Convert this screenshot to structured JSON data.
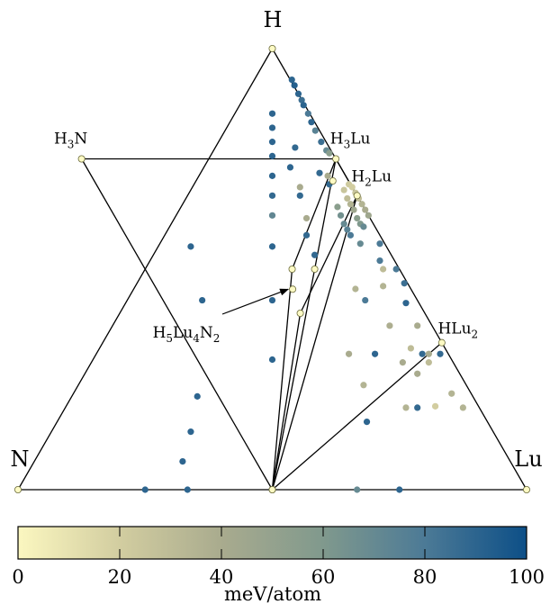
{
  "chart_data": {
    "type": "scatter",
    "subtype": "ternary phase diagram",
    "corners": {
      "top": "H",
      "left": "N",
      "right": "Lu"
    },
    "phase_labels": [
      {
        "id": "h3n",
        "parts": [
          [
            "H",
            ""
          ],
          [
            "3",
            "sub"
          ],
          [
            "N",
            ""
          ]
        ],
        "x": 0.125,
        "y": 0.75
      },
      {
        "id": "h3lu",
        "parts": [
          [
            "H",
            ""
          ],
          [
            "3",
            "sub"
          ],
          [
            "Lu",
            ""
          ]
        ],
        "x": 0.625,
        "y": 0.75
      },
      {
        "id": "h2lu",
        "parts": [
          [
            "H",
            ""
          ],
          [
            "2",
            "sub"
          ],
          [
            "Lu",
            ""
          ]
        ],
        "x": 0.6667,
        "y": 0.6667
      },
      {
        "id": "hlu2",
        "parts": [
          [
            "H",
            ""
          ],
          [
            "Lu",
            ""
          ],
          [
            "2",
            "sub"
          ]
        ],
        "x": 0.8333,
        "y": 0.3333
      },
      {
        "id": "h5lu4n2",
        "parts": [
          [
            "H",
            ""
          ],
          [
            "5",
            "sub"
          ],
          [
            "Lu",
            ""
          ],
          [
            "4",
            "sub"
          ],
          [
            "N",
            ""
          ],
          [
            "2",
            "sub"
          ]
        ],
        "x": 0.54,
        "y": 0.4545
      }
    ],
    "stable_points": [
      {
        "x": 0.5,
        "y": 1.0
      },
      {
        "x": 0.0,
        "y": 0.0
      },
      {
        "x": 1.0,
        "y": 0.0
      },
      {
        "x": 0.5,
        "y": 0.0
      },
      {
        "x": 0.125,
        "y": 0.75
      },
      {
        "x": 0.625,
        "y": 0.75
      },
      {
        "x": 0.6667,
        "y": 0.6667
      },
      {
        "x": 0.8333,
        "y": 0.3333
      },
      {
        "x": 0.54,
        "y": 0.4545
      },
      {
        "x": 0.539,
        "y": 0.5
      },
      {
        "x": 0.555,
        "y": 0.4
      },
      {
        "x": 0.5833,
        "y": 0.5
      },
      {
        "x": 0.619,
        "y": 0.7
      },
      {
        "x": 0.5,
        "y": 0.0
      }
    ],
    "tie_lines": [
      [
        {
          "x": 0.0,
          "y": 0.0
        },
        {
          "x": 1.0,
          "y": 0.0
        }
      ],
      [
        {
          "x": 0.0,
          "y": 0.0
        },
        {
          "x": 0.5,
          "y": 1.0
        }
      ],
      [
        {
          "x": 1.0,
          "y": 0.0
        },
        {
          "x": 0.5,
          "y": 1.0
        }
      ],
      [
        {
          "x": 0.125,
          "y": 0.75
        },
        {
          "x": 0.625,
          "y": 0.75
        }
      ],
      [
        {
          "x": 0.125,
          "y": 0.75
        },
        {
          "x": 0.5,
          "y": 0.0
        }
      ],
      [
        {
          "x": 0.625,
          "y": 0.75
        },
        {
          "x": 0.539,
          "y": 0.5
        }
      ],
      [
        {
          "x": 0.625,
          "y": 0.75
        },
        {
          "x": 0.5,
          "y": 0.0
        }
      ],
      [
        {
          "x": 0.625,
          "y": 0.75
        },
        {
          "x": 0.6667,
          "y": 0.6667
        }
      ],
      [
        {
          "x": 0.6667,
          "y": 0.6667
        },
        {
          "x": 0.555,
          "y": 0.4
        }
      ],
      [
        {
          "x": 0.6667,
          "y": 0.6667
        },
        {
          "x": 0.5,
          "y": 0.0
        }
      ],
      [
        {
          "x": 0.539,
          "y": 0.5
        },
        {
          "x": 0.5,
          "y": 0.0
        }
      ],
      [
        {
          "x": 0.555,
          "y": 0.4
        },
        {
          "x": 0.5,
          "y": 0.0
        }
      ],
      [
        {
          "x": 0.8333,
          "y": 0.3333
        },
        {
          "x": 0.5,
          "y": 0.0
        }
      ]
    ],
    "unstable_points": [
      {
        "x": 0.5385,
        "y": 0.9295,
        "e": 90
      },
      {
        "x": 0.5436,
        "y": 0.9167,
        "e": 92
      },
      {
        "x": 0.5513,
        "y": 0.8974,
        "e": 90
      },
      {
        "x": 0.5578,
        "y": 0.8833,
        "e": 85
      },
      {
        "x": 0.5615,
        "y": 0.8718,
        "e": 90
      },
      {
        "x": 0.5705,
        "y": 0.8526,
        "e": 80
      },
      {
        "x": 0.5769,
        "y": 0.8333,
        "e": 90
      },
      {
        "x": 0.5846,
        "y": 0.8141,
        "e": 75
      },
      {
        "x": 0.5962,
        "y": 0.7885,
        "e": 85
      },
      {
        "x": 0.6064,
        "y": 0.7692,
        "e": 70
      },
      {
        "x": 0.6122,
        "y": 0.7628,
        "e": 55
      },
      {
        "x": 0.5,
        "y": 0.8526,
        "e": 90
      },
      {
        "x": 0.5,
        "y": 0.8205,
        "e": 90
      },
      {
        "x": 0.5,
        "y": 0.7885,
        "e": 90
      },
      {
        "x": 0.5,
        "y": 0.7564,
        "e": 90
      },
      {
        "x": 0.5,
        "y": 0.7115,
        "e": 90
      },
      {
        "x": 0.5,
        "y": 0.6667,
        "e": 88
      },
      {
        "x": 0.5,
        "y": 0.6218,
        "e": 72
      },
      {
        "x": 0.5,
        "y": 0.5513,
        "e": 90
      },
      {
        "x": 0.5,
        "y": 0.4295,
        "e": 90
      },
      {
        "x": 0.5,
        "y": 0.2949,
        "e": 90
      },
      {
        "x": 0.5449,
        "y": 0.7756,
        "e": 88
      },
      {
        "x": 0.5353,
        "y": 0.7308,
        "e": 90
      },
      {
        "x": 0.5545,
        "y": 0.6859,
        "e": 40
      },
      {
        "x": 0.5545,
        "y": 0.6667,
        "e": 88
      },
      {
        "x": 0.5673,
        "y": 0.6154,
        "e": 40
      },
      {
        "x": 0.5673,
        "y": 0.5769,
        "e": 88
      },
      {
        "x": 0.5833,
        "y": 0.5321,
        "e": 88
      },
      {
        "x": 0.5929,
        "y": 0.7179,
        "e": 88
      },
      {
        "x": 0.609,
        "y": 0.7115,
        "e": 40
      },
      {
        "x": 0.6122,
        "y": 0.6923,
        "e": 88
      },
      {
        "x": 0.6506,
        "y": 0.6923,
        "e": 22
      },
      {
        "x": 0.6571,
        "y": 0.6859,
        "e": 20
      },
      {
        "x": 0.6635,
        "y": 0.6731,
        "e": 25
      },
      {
        "x": 0.6699,
        "y": 0.6603,
        "e": 28
      },
      {
        "x": 0.6763,
        "y": 0.6474,
        "e": 35
      },
      {
        "x": 0.6827,
        "y": 0.6346,
        "e": 40
      },
      {
        "x": 0.6891,
        "y": 0.6218,
        "e": 45
      },
      {
        "x": 0.641,
        "y": 0.6795,
        "e": 25
      },
      {
        "x": 0.6474,
        "y": 0.6603,
        "e": 30
      },
      {
        "x": 0.6538,
        "y": 0.6474,
        "e": 35
      },
      {
        "x": 0.6603,
        "y": 0.6346,
        "e": 45
      },
      {
        "x": 0.6667,
        "y": 0.6154,
        "e": 55
      },
      {
        "x": 0.6731,
        "y": 0.6026,
        "e": 60
      },
      {
        "x": 0.6282,
        "y": 0.641,
        "e": 55
      },
      {
        "x": 0.6346,
        "y": 0.6218,
        "e": 65
      },
      {
        "x": 0.641,
        "y": 0.6026,
        "e": 70
      },
      {
        "x": 0.6474,
        "y": 0.5897,
        "e": 75
      },
      {
        "x": 0.6538,
        "y": 0.5769,
        "e": 80
      },
      {
        "x": 0.6795,
        "y": 0.5962,
        "e": 70
      },
      {
        "x": 0.6731,
        "y": 0.5577,
        "e": 70
      },
      {
        "x": 0.7115,
        "y": 0.5577,
        "e": 80
      },
      {
        "x": 0.7115,
        "y": 0.5192,
        "e": 80
      },
      {
        "x": 0.7179,
        "y": 0.5,
        "e": 30
      },
      {
        "x": 0.7436,
        "y": 0.5,
        "e": 80
      },
      {
        "x": 0.7179,
        "y": 0.4615,
        "e": 35
      },
      {
        "x": 0.6635,
        "y": 0.4551,
        "e": 35
      },
      {
        "x": 0.7596,
        "y": 0.4679,
        "e": 85
      },
      {
        "x": 0.6827,
        "y": 0.4295,
        "e": 80
      },
      {
        "x": 0.7628,
        "y": 0.4231,
        "e": 90
      },
      {
        "x": 0.7308,
        "y": 0.3718,
        "e": 38
      },
      {
        "x": 0.6506,
        "y": 0.3077,
        "e": 40
      },
      {
        "x": 0.7019,
        "y": 0.3077,
        "e": 90
      },
      {
        "x": 0.7853,
        "y": 0.3718,
        "e": 40
      },
      {
        "x": 0.7949,
        "y": 0.3077,
        "e": 88
      },
      {
        "x": 0.8077,
        "y": 0.3077,
        "e": 40
      },
      {
        "x": 0.8301,
        "y": 0.3077,
        "e": 88
      },
      {
        "x": 0.7724,
        "y": 0.3205,
        "e": 30
      },
      {
        "x": 0.7564,
        "y": 0.2885,
        "e": 40
      },
      {
        "x": 0.7853,
        "y": 0.2628,
        "e": 40
      },
      {
        "x": 0.8077,
        "y": 0.2885,
        "e": 30
      },
      {
        "x": 0.6795,
        "y": 0.2372,
        "e": 35
      },
      {
        "x": 0.7628,
        "y": 0.1859,
        "e": 35
      },
      {
        "x": 0.7853,
        "y": 0.1859,
        "e": 88
      },
      {
        "x": 0.8205,
        "y": 0.1891,
        "e": 20
      },
      {
        "x": 0.8526,
        "y": 0.2179,
        "e": 35
      },
      {
        "x": 0.875,
        "y": 0.1859,
        "e": 35
      },
      {
        "x": 0.6859,
        "y": 0.1539,
        "e": 90
      },
      {
        "x": 0.3526,
        "y": 0.2115,
        "e": 90
      },
      {
        "x": 0.3397,
        "y": 0.1314,
        "e": 90
      },
      {
        "x": 0.3237,
        "y": 0.0641,
        "e": 90
      },
      {
        "x": 0.3397,
        "y": 0.5513,
        "e": 90
      },
      {
        "x": 0.3622,
        "y": 0.4295,
        "e": 90
      },
      {
        "x": 0.25,
        "y": 0.0,
        "e": 90
      },
      {
        "x": 0.3333,
        "y": 0.0,
        "e": 90
      },
      {
        "x": 0.6667,
        "y": 0.0,
        "e": 70
      },
      {
        "x": 0.75,
        "y": 0.0,
        "e": 90
      }
    ],
    "colorbar": {
      "label": "meV/atom",
      "range": [
        0,
        100
      ],
      "ticks": [
        "0",
        "20",
        "40",
        "60",
        "80",
        "100"
      ],
      "colors": [
        "#fbf7c0",
        "#d2cda0",
        "#a9ab8e",
        "#80998d",
        "#4c7a96",
        "#0d4f87"
      ]
    },
    "grid": false,
    "legend": "none"
  }
}
